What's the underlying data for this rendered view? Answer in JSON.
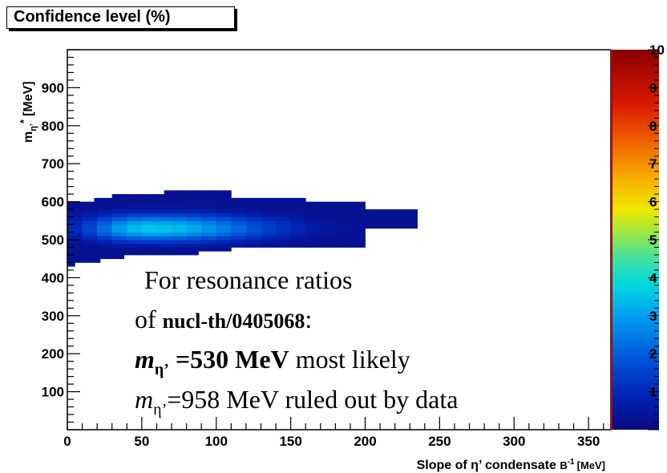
{
  "chart_data": {
    "type": "heatmap",
    "title": "Confidence level (%)",
    "xlabel": "Slope of η’ condensate",
    "xlabel_unit_base": "B",
    "xlabel_unit_exp": "-1",
    "xlabel_unit_suffix": "[MeV]",
    "ylabel_base": "m",
    "ylabel_sub": "η’",
    "ylabel_sup": "*",
    "ylabel_unit": "[MeV]",
    "xlim": [
      0,
      365
    ],
    "ylim": [
      0,
      1000
    ],
    "zlim": [
      0,
      10
    ],
    "x_ticks": [
      0,
      50,
      100,
      150,
      200,
      250,
      300,
      350
    ],
    "y_ticks": [
      100,
      200,
      300,
      400,
      500,
      600,
      700,
      800,
      900
    ],
    "z_ticks": [
      1,
      2,
      3,
      4,
      5,
      6,
      7,
      8,
      9,
      10
    ],
    "y_bins": [
      {
        "y0": 430,
        "y1": 440,
        "x1": 5
      },
      {
        "y0": 440,
        "y1": 450,
        "x1": 22
      },
      {
        "y0": 450,
        "y1": 460,
        "x1": 38
      },
      {
        "y0": 460,
        "y1": 470,
        "x1": 88
      },
      {
        "y0": 470,
        "y1": 480,
        "x1": 110
      },
      {
        "y0": 480,
        "y1": 490,
        "x1": 200
      },
      {
        "y0": 490,
        "y1": 500,
        "x1": 200
      },
      {
        "y0": 500,
        "y1": 510,
        "x1": 200
      },
      {
        "y0": 510,
        "y1": 520,
        "x1": 200
      },
      {
        "y0": 520,
        "y1": 530,
        "x1": 200
      },
      {
        "y0": 530,
        "y1": 540,
        "x1": 235
      },
      {
        "y0": 540,
        "y1": 550,
        "x1": 235
      },
      {
        "y0": 550,
        "y1": 560,
        "x1": 235
      },
      {
        "y0": 560,
        "y1": 570,
        "x1": 235
      },
      {
        "y0": 570,
        "y1": 580,
        "x1": 235
      },
      {
        "y0": 580,
        "y1": 590,
        "x1": 200
      },
      {
        "y0": 590,
        "y1": 600,
        "x1": 200
      },
      {
        "y0": 600,
        "y1": 610,
        "x1": 160
      },
      {
        "y0": 610,
        "y1": 620,
        "x1": 110
      },
      {
        "y0": 620,
        "y1": 630,
        "x1": 110
      }
    ],
    "row_x0": [
      {
        "y0": 430,
        "y1": 600,
        "x0": 0
      },
      {
        "y0": 600,
        "y1": 610,
        "x0": 18
      },
      {
        "y0": 610,
        "y1": 620,
        "x0": 30
      },
      {
        "y0": 620,
        "y1": 630,
        "x0": 65
      }
    ],
    "peak": {
      "x": 55,
      "y": 530,
      "z": 3.6
    },
    "spread": {
      "x_left": 45,
      "x_right": 85,
      "y_below": 35,
      "y_above": 38
    }
  },
  "annotation": {
    "line1": "For resonance ratios",
    "line2_prefix": "of ",
    "line2_bold": "nucl-th/0405068",
    "line2_suffix": ":",
    "line3_m": "m",
    "line3_sub": "η’",
    "line3_bold": " =530 MeV",
    "line3_rest": " most likely",
    "line4_m": "m",
    "line4_sub": "η’",
    "line4_rest": "=958 MeV ruled out by data"
  }
}
